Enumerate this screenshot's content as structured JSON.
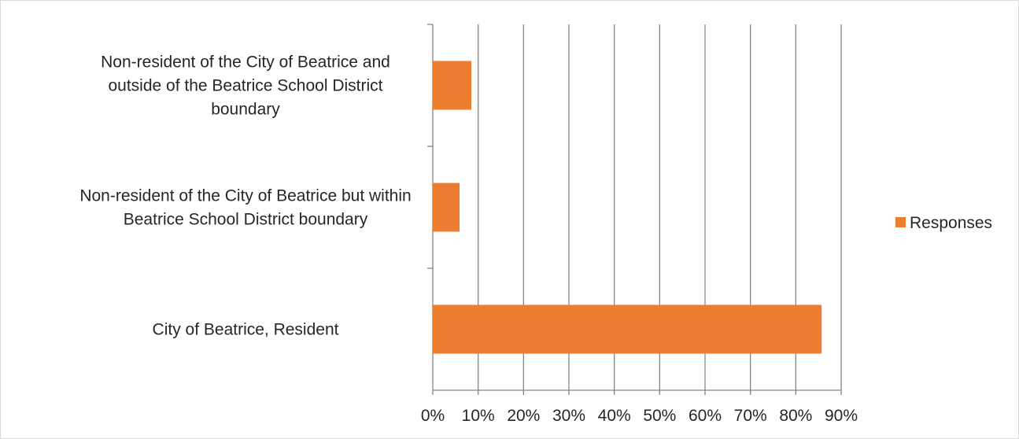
{
  "chart_data": {
    "type": "bar",
    "orientation": "horizontal",
    "categories": [
      "City of Beatrice, Resident",
      "Non-resident of the City of Beatrice but within Beatrice School District boundary",
      "Non-resident of the City of Beatrice and outside of the Beatrice School District boundary"
    ],
    "category_label_lines": [
      [
        "City of Beatrice, Resident"
      ],
      [
        "Non-resident of the City of Beatrice but within",
        "Beatrice School District boundary"
      ],
      [
        "Non-resident of the City of Beatrice and",
        "outside of the Beatrice School District",
        "boundary"
      ]
    ],
    "series": [
      {
        "name": "Responses",
        "values": [
          0.857,
          0.059,
          0.085
        ],
        "color": "#ed7d31"
      }
    ],
    "xlim": [
      0,
      0.9
    ],
    "x_ticks": [
      0,
      0.1,
      0.2,
      0.3,
      0.4,
      0.5,
      0.6,
      0.7,
      0.8,
      0.9
    ],
    "x_tick_labels": [
      "0%",
      "10%",
      "20%",
      "30%",
      "40%",
      "50%",
      "60%",
      "70%",
      "80%",
      "90%"
    ],
    "grid": "vertical",
    "legend": "right",
    "title": "",
    "xlabel": "",
    "ylabel": ""
  }
}
